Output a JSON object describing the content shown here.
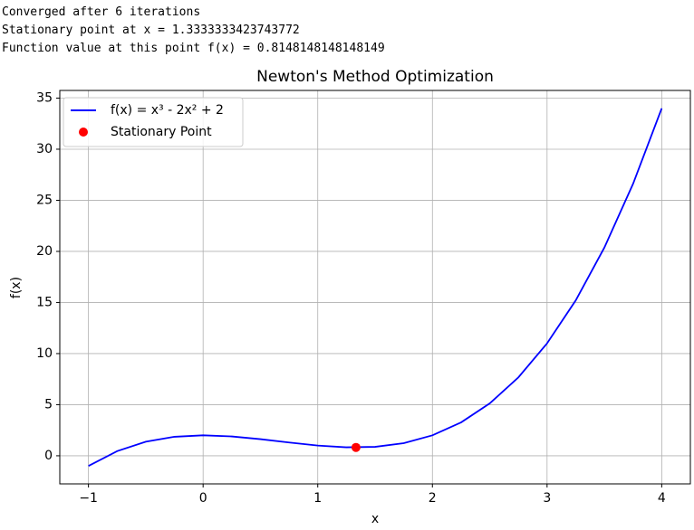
{
  "output_lines": [
    "Converged after 6 iterations",
    "Stationary point at x = 1.3333333423743772",
    "Function value at this point f(x) = 0.8148148148148149"
  ],
  "chart_data": {
    "type": "line",
    "title": "Newton's Method Optimization",
    "xlabel": "x",
    "ylabel": "f(x)",
    "xlim": [
      -1.25,
      4.25
    ],
    "ylim": [
      -2.75,
      35.75
    ],
    "xticks": [
      {
        "value": -1,
        "label": "−1"
      },
      0,
      1,
      2,
      3,
      4
    ],
    "yticks": [
      0,
      5,
      10,
      15,
      20,
      25,
      30,
      35
    ],
    "grid": true,
    "legend": "upper left",
    "series": [
      {
        "name": "f(x) = x³ - 2x² + 2",
        "type": "line",
        "color": "#0000ff",
        "x": [
          -1,
          -0.75,
          -0.5,
          -0.25,
          0,
          0.25,
          0.5,
          0.75,
          1,
          1.25,
          1.5,
          1.75,
          2,
          2.25,
          2.5,
          2.75,
          3,
          3.25,
          3.5,
          3.75,
          4
        ],
        "values": [
          -1,
          0.453125,
          1.375,
          1.859375,
          2,
          1.890625,
          1.625,
          1.296875,
          1,
          0.828125,
          0.875,
          1.234375,
          2,
          3.265625,
          5.125,
          7.671875,
          11,
          15.203125,
          20.375,
          26.609375,
          34
        ]
      },
      {
        "name": "Stationary Point",
        "type": "scatter",
        "color": "#ff0000",
        "x": [
          1.3333333423743772
        ],
        "values": [
          0.8148148148148149
        ]
      }
    ]
  }
}
